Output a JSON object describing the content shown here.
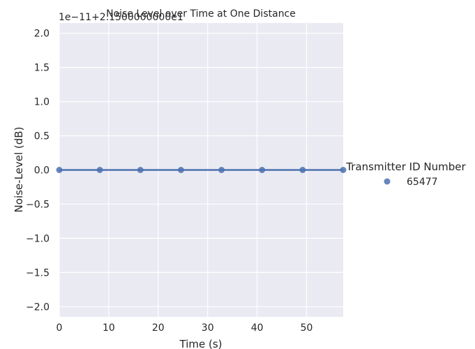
{
  "chart_data": {
    "type": "scatter",
    "title": "Noise Level over Time at One Distance",
    "xlabel": "Time (s)",
    "ylabel": "Noise-Level (dB)",
    "offset_label": "1e−11+2.1500000000e1",
    "xlim": [
      0,
      57.4
    ],
    "ylim": [
      -2.15,
      2.15
    ],
    "x_ticks": [
      0,
      10,
      20,
      30,
      40,
      50
    ],
    "y_ticks": [
      2.0,
      1.5,
      1.0,
      0.5,
      0.0,
      -0.5,
      -1.0,
      -1.5,
      -2.0
    ],
    "y_tick_labels": [
      "2.0",
      "1.5",
      "1.0",
      "0.5",
      "0.0",
      "−0.5",
      "−1.0",
      "−1.5",
      "−2.0"
    ],
    "grid": true,
    "legend_title": "Transmitter ID Number",
    "legend_position": "right",
    "series": [
      {
        "name": "65477",
        "color": "#4c72b0",
        "x": [
          0,
          8.2,
          16.4,
          24.6,
          32.8,
          41.0,
          49.2,
          57.4
        ],
        "y": [
          0,
          0,
          0,
          0,
          0,
          0,
          0,
          0
        ],
        "fit_line": true
      }
    ]
  }
}
